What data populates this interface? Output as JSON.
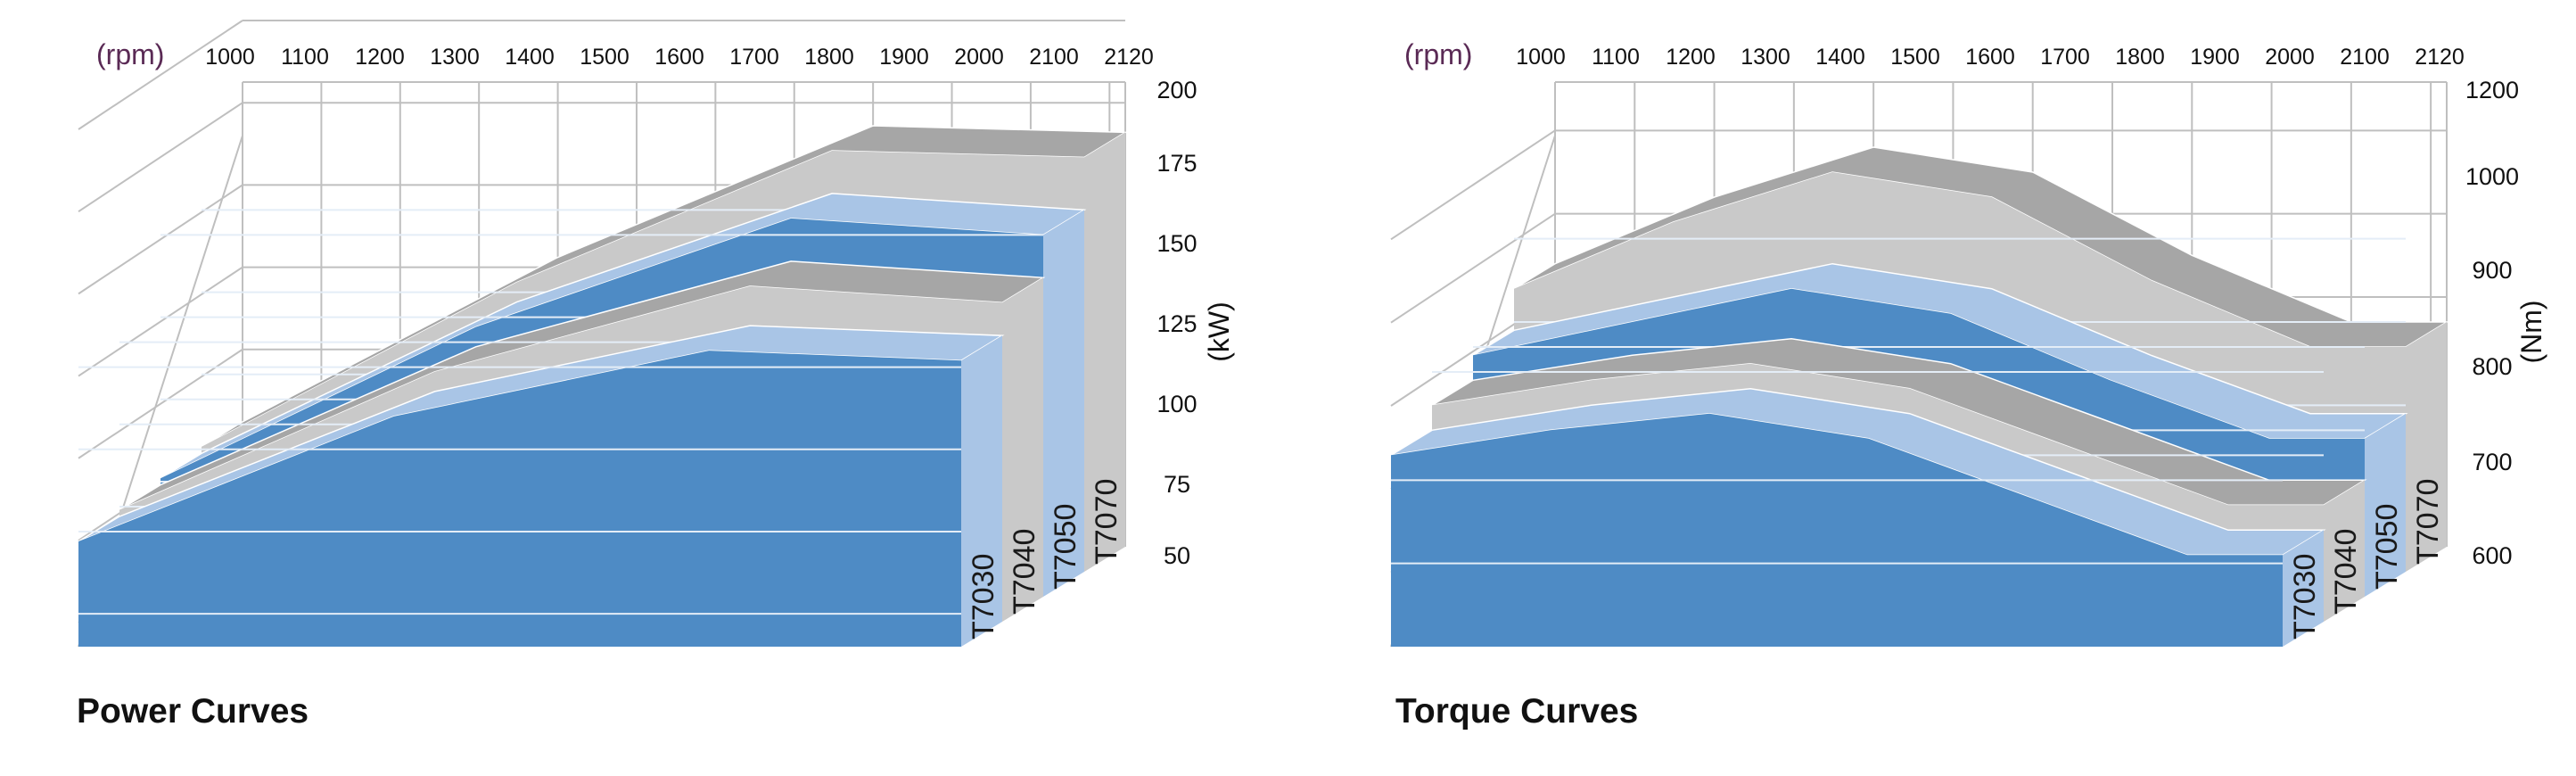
{
  "colors": {
    "blue_front": "#4e8bc5",
    "blue_top": "#5f97cf",
    "light_side": "#a9c5e6",
    "gray_top": "#a6a6a6",
    "gray_side": "#c9c9c9",
    "grid": "#bfbfbf",
    "band_line": "#e4edf7",
    "rpm_unit": "#5a2a55"
  },
  "chart_data": [
    {
      "type": "area",
      "chart_style": "3d-layered-area",
      "caption": "Power Curves",
      "x_unit": "(rpm)",
      "x_ticks": [
        1000,
        1100,
        1200,
        1300,
        1400,
        1500,
        1600,
        1700,
        1800,
        1900,
        2000,
        2100,
        2120
      ],
      "y_unit": "(kW)",
      "y_ticks": [
        50,
        75,
        100,
        125,
        150,
        175,
        200
      ],
      "ylim": [
        40,
        200
      ],
      "grid": true,
      "series": [
        {
          "name": "T7030",
          "x": [
            1000,
            1400,
            1800,
            2120
          ],
          "values": [
            72,
            110,
            130,
            127
          ]
        },
        {
          "name": "T7040",
          "x": [
            1000,
            1400,
            1800,
            2120
          ],
          "values": [
            74,
            116,
            142,
            137
          ]
        },
        {
          "name": "T7050",
          "x": [
            1000,
            1400,
            1800,
            2120
          ],
          "values": [
            76,
            122,
            155,
            150
          ]
        },
        {
          "name": "T7070",
          "x": [
            1000,
            1400,
            1800,
            2120
          ],
          "values": [
            78,
            128,
            168,
            166
          ]
        }
      ]
    },
    {
      "type": "area",
      "chart_style": "3d-layered-area",
      "caption": "Torque Curves",
      "x_unit": "(rpm)",
      "x_ticks": [
        1000,
        1100,
        1200,
        1300,
        1400,
        1500,
        1600,
        1700,
        1800,
        1900,
        2000,
        2100,
        2120
      ],
      "y_unit": "(Nm)",
      "y_ticks": [
        600,
        700,
        800,
        900,
        1000,
        1200
      ],
      "ylim": [
        500,
        1100
      ],
      "grid": true,
      "series": [
        {
          "name": "T7030",
          "x": [
            1000,
            1200,
            1400,
            1600,
            1800,
            2000,
            2120
          ],
          "values": [
            730,
            760,
            780,
            750,
            680,
            610,
            610
          ]
        },
        {
          "name": "T7040",
          "x": [
            1000,
            1200,
            1400,
            1600,
            1800,
            2000,
            2120
          ],
          "values": [
            760,
            790,
            810,
            780,
            710,
            640,
            640
          ]
        },
        {
          "name": "T7050",
          "x": [
            1000,
            1200,
            1400,
            1600,
            1800,
            2000,
            2120
          ],
          "values": [
            790,
            830,
            870,
            840,
            760,
            690,
            690
          ]
        },
        {
          "name": "T7070",
          "x": [
            1000,
            1200,
            1400,
            1600,
            1800,
            2000,
            2120
          ],
          "values": [
            840,
            920,
            980,
            950,
            850,
            770,
            770
          ]
        }
      ]
    }
  ]
}
